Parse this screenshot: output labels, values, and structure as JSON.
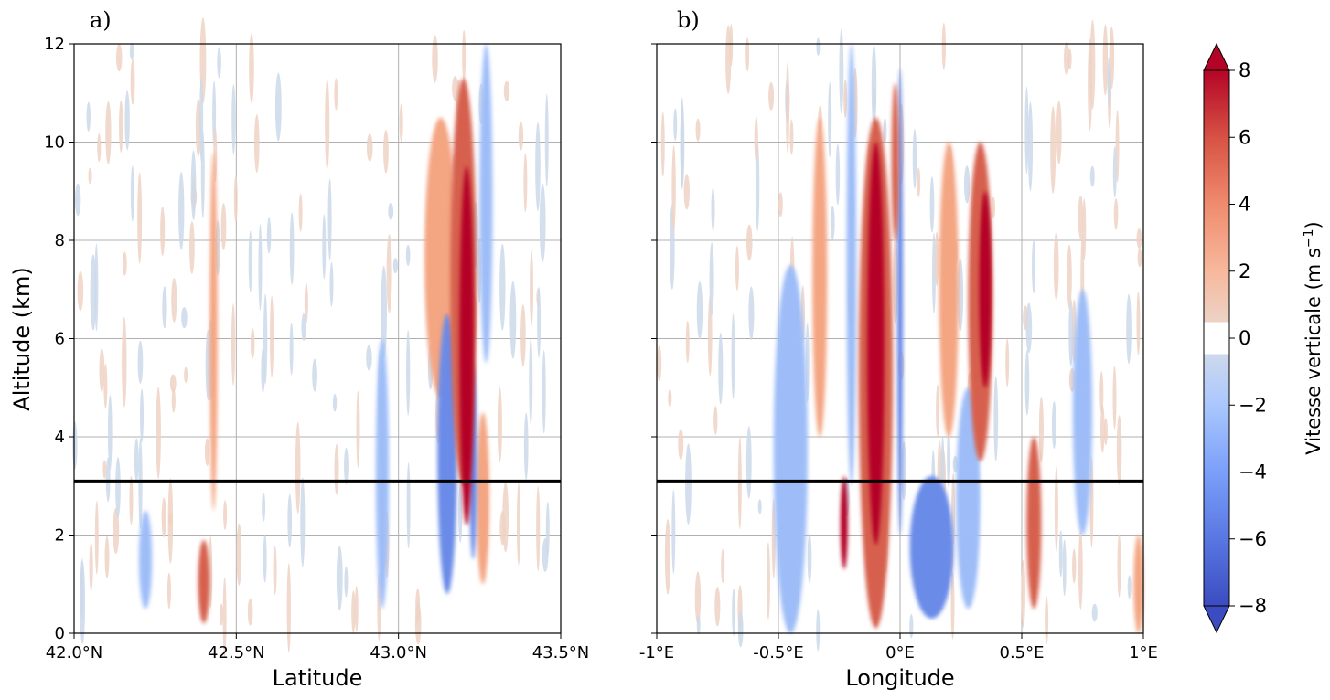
{
  "figure": {
    "colors": {
      "max": "#b40426",
      "pos_strong": "#d6604d",
      "pos_mid": "#f4a582",
      "pos_weak": "#efd2c4",
      "zero": "#ffffff",
      "neg_weak": "#cdd9ea",
      "neg_mid": "#9ebdf8",
      "neg_strong": "#6a8be8",
      "min": "#3b4cc0"
    }
  },
  "chart_data": [
    {
      "type": "heatmap",
      "panel_tag": "a)",
      "xlabel": "Latitude",
      "ylabel": "Altitude (km)",
      "xlim": [
        42.0,
        43.5
      ],
      "ylim": [
        0,
        12
      ],
      "x_ticks": [
        {
          "value": 42.0,
          "label": "42.0°N"
        },
        {
          "value": 42.5,
          "label": "42.5°N"
        },
        {
          "value": 43.0,
          "label": "43.0°N"
        },
        {
          "value": 43.5,
          "label": "43.5°N"
        }
      ],
      "y_ticks": [
        {
          "value": 0,
          "label": "0"
        },
        {
          "value": 2,
          "label": "2"
        },
        {
          "value": 4,
          "label": "4"
        },
        {
          "value": 6,
          "label": "6"
        },
        {
          "value": 8,
          "label": "8"
        },
        {
          "value": 10,
          "label": "10"
        },
        {
          "value": 12,
          "label": "12"
        }
      ],
      "grid": true,
      "reference_line_altitude_km": 3.1,
      "updrafts": [
        {
          "x": 43.21,
          "z_bottom": 2.2,
          "z_top": 9.5,
          "w": 8,
          "half_width": 0.022
        },
        {
          "x": 43.2,
          "z_bottom": 3.0,
          "z_top": 11.3,
          "w": 4,
          "half_width": 0.04
        },
        {
          "x": 43.13,
          "z_bottom": 4.8,
          "z_top": 10.5,
          "w": 2,
          "half_width": 0.05
        },
        {
          "x": 42.4,
          "z_bottom": 0.2,
          "z_top": 1.9,
          "w": 4,
          "half_width": 0.018
        },
        {
          "x": 42.43,
          "z_bottom": 2.5,
          "z_top": 9.8,
          "w": 2,
          "half_width": 0.012
        },
        {
          "x": 43.26,
          "z_bottom": 1.0,
          "z_top": 4.5,
          "w": 2,
          "half_width": 0.02
        }
      ],
      "downdrafts": [
        {
          "x": 43.15,
          "z_bottom": 0.8,
          "z_top": 6.5,
          "w": -4,
          "half_width": 0.03
        },
        {
          "x": 43.23,
          "z_bottom": 1.5,
          "z_top": 5.5,
          "w": -4,
          "half_width": 0.012
        },
        {
          "x": 42.22,
          "z_bottom": 0.5,
          "z_top": 2.5,
          "w": -2,
          "half_width": 0.02
        },
        {
          "x": 42.95,
          "z_bottom": 0.5,
          "z_top": 6.0,
          "w": -2,
          "half_width": 0.02
        },
        {
          "x": 43.27,
          "z_bottom": 5.5,
          "z_top": 12.0,
          "w": -2,
          "half_width": 0.02
        }
      ]
    },
    {
      "type": "heatmap",
      "panel_tag": "b)",
      "xlabel": "Longitude",
      "ylabel": "",
      "xlim": [
        -1,
        1
      ],
      "ylim": [
        0,
        12
      ],
      "x_ticks": [
        {
          "value": -1,
          "label": "-1°E"
        },
        {
          "value": -0.5,
          "label": "-0.5°E"
        },
        {
          "value": 0,
          "label": "0°E"
        },
        {
          "value": 0.5,
          "label": "0.5°E"
        },
        {
          "value": 1,
          "label": "1°E"
        }
      ],
      "y_ticks": [
        {
          "value": 0,
          "label": ""
        },
        {
          "value": 2,
          "label": ""
        },
        {
          "value": 4,
          "label": ""
        },
        {
          "value": 6,
          "label": ""
        },
        {
          "value": 8,
          "label": ""
        },
        {
          "value": 10,
          "label": ""
        },
        {
          "value": 12,
          "label": ""
        }
      ],
      "grid": true,
      "reference_line_altitude_km": 3.1,
      "updrafts": [
        {
          "x": -0.1,
          "z_bottom": 1.8,
          "z_top": 10.0,
          "w": 8,
          "half_width": 0.035
        },
        {
          "x": -0.23,
          "z_bottom": 1.3,
          "z_top": 3.2,
          "w": 8,
          "half_width": 0.015
        },
        {
          "x": -0.1,
          "z_bottom": 0.1,
          "z_top": 10.5,
          "w": 4,
          "half_width": 0.07
        },
        {
          "x": 0.35,
          "z_bottom": 5.0,
          "z_top": 9.0,
          "w": 8,
          "half_width": 0.025
        },
        {
          "x": 0.33,
          "z_bottom": 3.5,
          "z_top": 10.0,
          "w": 4,
          "half_width": 0.05
        },
        {
          "x": 0.55,
          "z_bottom": 0.5,
          "z_top": 4.0,
          "w": 4,
          "half_width": 0.03
        },
        {
          "x": -0.02,
          "z_bottom": 8.0,
          "z_top": 11.2,
          "w": 4,
          "half_width": 0.015
        },
        {
          "x": -0.33,
          "z_bottom": 4.0,
          "z_top": 10.5,
          "w": 2,
          "half_width": 0.03
        },
        {
          "x": 0.2,
          "z_bottom": 4.0,
          "z_top": 10.0,
          "w": 2,
          "half_width": 0.04
        },
        {
          "x": 0.98,
          "z_bottom": 0.0,
          "z_top": 2.0,
          "w": 2,
          "half_width": 0.02
        }
      ],
      "downdrafts": [
        {
          "x": 0.13,
          "z_bottom": 0.3,
          "z_top": 3.2,
          "w": -4,
          "half_width": 0.09
        },
        {
          "x": -0.45,
          "z_bottom": 0.0,
          "z_top": 7.5,
          "w": -2,
          "half_width": 0.07
        },
        {
          "x": 0.28,
          "z_bottom": 0.5,
          "z_top": 5.0,
          "w": -2,
          "half_width": 0.05
        },
        {
          "x": 0.0,
          "z_bottom": 2.0,
          "z_top": 11.5,
          "w": -4,
          "half_width": 0.012
        },
        {
          "x": -0.2,
          "z_bottom": 3.0,
          "z_top": 12.0,
          "w": -2,
          "half_width": 0.02
        },
        {
          "x": 0.75,
          "z_bottom": 2.0,
          "z_top": 7.0,
          "w": -2,
          "half_width": 0.04
        }
      ]
    }
  ],
  "colorbar": {
    "label": "Vitesse verticale (m s",
    "label_exponent": "−1",
    "label_close": ")",
    "range": [
      -8,
      8
    ],
    "extend": "both",
    "levels": [
      -8,
      -6,
      -4,
      -2,
      0,
      2,
      4,
      6,
      8
    ],
    "ticks": [
      {
        "value": 8,
        "label": "8"
      },
      {
        "value": 6,
        "label": "6"
      },
      {
        "value": 4,
        "label": "4"
      },
      {
        "value": 2,
        "label": "2"
      },
      {
        "value": 0,
        "label": "0"
      },
      {
        "value": -2,
        "label": "−2"
      },
      {
        "value": -4,
        "label": "−4"
      },
      {
        "value": -6,
        "label": "−6"
      },
      {
        "value": -8,
        "label": "−8"
      }
    ]
  }
}
